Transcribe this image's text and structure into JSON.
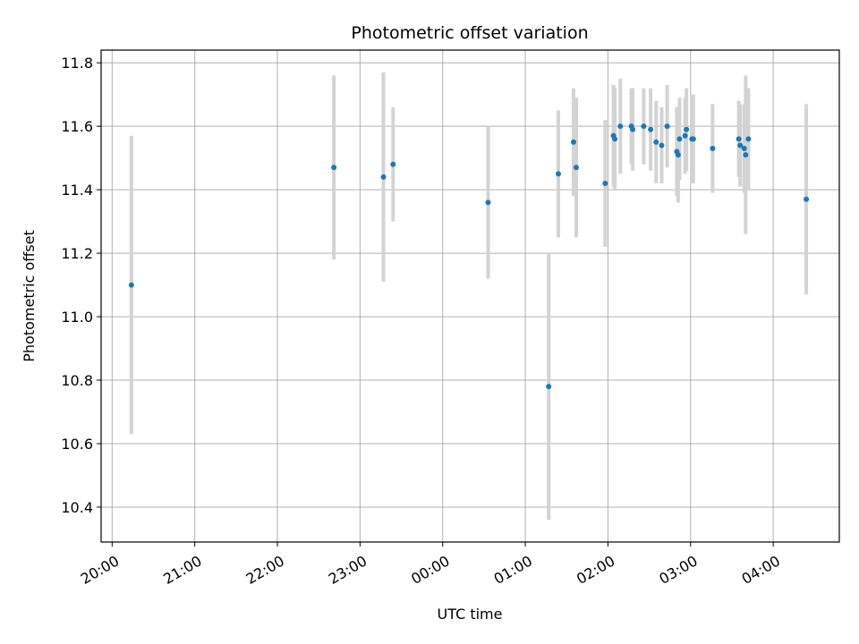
{
  "chart_data": {
    "type": "scatter",
    "title": "Photometric offset variation",
    "xlabel": "UTC time",
    "ylabel": "Photometric offset",
    "x_is_time": true,
    "xlim": [
      "2023-01-01 19:52",
      "2023-01-02 04:48"
    ],
    "ylim": [
      10.29,
      11.84
    ],
    "x_ticks": [
      {
        "t": "2023-01-01 20:00",
        "label": "20:00"
      },
      {
        "t": "2023-01-01 21:00",
        "label": "21:00"
      },
      {
        "t": "2023-01-01 22:00",
        "label": "22:00"
      },
      {
        "t": "2023-01-01 23:00",
        "label": "23:00"
      },
      {
        "t": "2023-01-02 00:00",
        "label": "00:00"
      },
      {
        "t": "2023-01-02 01:00",
        "label": "01:00"
      },
      {
        "t": "2023-01-02 02:00",
        "label": "02:00"
      },
      {
        "t": "2023-01-02 03:00",
        "label": "03:00"
      },
      {
        "t": "2023-01-02 04:00",
        "label": "04:00"
      }
    ],
    "y_ticks": [
      10.4,
      10.6,
      10.8,
      11.0,
      11.2,
      11.4,
      11.6,
      11.8
    ],
    "y_tick_labels": [
      "10.4",
      "10.6",
      "10.8",
      "11.0",
      "11.2",
      "11.4",
      "11.6",
      "11.8"
    ],
    "grid": true,
    "colors": {
      "points": "#1f77b4",
      "errorbars": "#d3d3d3",
      "grid": "#b0b0b0"
    },
    "points": [
      {
        "t": "2023-01-01 20:14",
        "y": 11.1,
        "err": 0.47
      },
      {
        "t": "2023-01-01 22:41",
        "y": 11.47,
        "err": 0.29
      },
      {
        "t": "2023-01-01 23:17",
        "y": 11.44,
        "err": 0.33
      },
      {
        "t": "2023-01-01 23:24",
        "y": 11.48,
        "err": 0.18
      },
      {
        "t": "2023-01-02 00:33",
        "y": 11.36,
        "err": 0.24
      },
      {
        "t": "2023-01-02 01:17",
        "y": 10.78,
        "err": 0.42
      },
      {
        "t": "2023-01-02 01:24",
        "y": 11.45,
        "err": 0.2
      },
      {
        "t": "2023-01-02 01:35",
        "y": 11.55,
        "err": 0.17
      },
      {
        "t": "2023-01-02 01:37",
        "y": 11.47,
        "err": 0.22
      },
      {
        "t": "2023-01-02 01:58",
        "y": 11.42,
        "err": 0.2
      },
      {
        "t": "2023-01-02 02:04",
        "y": 11.57,
        "err": 0.16
      },
      {
        "t": "2023-01-02 02:05",
        "y": 11.56,
        "err": 0.16
      },
      {
        "t": "2023-01-02 02:09",
        "y": 11.6,
        "err": 0.15
      },
      {
        "t": "2023-01-02 02:17",
        "y": 11.6,
        "err": 0.12
      },
      {
        "t": "2023-01-02 02:18",
        "y": 11.59,
        "err": 0.13
      },
      {
        "t": "2023-01-02 02:26",
        "y": 11.6,
        "err": 0.12
      },
      {
        "t": "2023-01-02 02:31",
        "y": 11.59,
        "err": 0.13
      },
      {
        "t": "2023-01-02 02:35",
        "y": 11.55,
        "err": 0.13
      },
      {
        "t": "2023-01-02 02:39",
        "y": 11.54,
        "err": 0.12
      },
      {
        "t": "2023-01-02 02:43",
        "y": 11.6,
        "err": 0.13
      },
      {
        "t": "2023-01-02 02:50",
        "y": 11.52,
        "err": 0.14
      },
      {
        "t": "2023-01-02 02:51",
        "y": 11.51,
        "err": 0.15
      },
      {
        "t": "2023-01-02 02:52",
        "y": 11.56,
        "err": 0.13
      },
      {
        "t": "2023-01-02 02:56",
        "y": 11.57,
        "err": 0.12
      },
      {
        "t": "2023-01-02 02:57",
        "y": 11.59,
        "err": 0.13
      },
      {
        "t": "2023-01-02 03:01",
        "y": 11.56,
        "err": 0.14
      },
      {
        "t": "2023-01-02 03:02",
        "y": 11.56,
        "err": 0.14
      },
      {
        "t": "2023-01-02 03:16",
        "y": 11.53,
        "err": 0.14
      },
      {
        "t": "2023-01-02 03:35",
        "y": 11.56,
        "err": 0.12
      },
      {
        "t": "2023-01-02 03:36",
        "y": 11.54,
        "err": 0.13
      },
      {
        "t": "2023-01-02 03:39",
        "y": 11.53,
        "err": 0.14
      },
      {
        "t": "2023-01-02 03:40",
        "y": 11.51,
        "err": 0.25
      },
      {
        "t": "2023-01-02 03:42",
        "y": 11.56,
        "err": 0.16
      },
      {
        "t": "2023-01-02 04:24",
        "y": 11.37,
        "err": 0.3
      }
    ]
  }
}
